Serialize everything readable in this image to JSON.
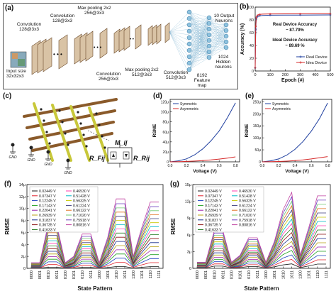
{
  "panel_labels": {
    "a": "(a)",
    "b": "(b)",
    "c": "(c)",
    "d": "(d)",
    "e": "(e)",
    "f": "(f)",
    "g": "(g)"
  },
  "panel_a": {
    "input_label": "Input size 32x32x3",
    "conv1": "Convolution 128@3x3",
    "conv2": "Convolution 128@3x3",
    "pool1": "Max pooling 2x2 256@3x3",
    "conv3": "Convolution 256@3x3",
    "pool2": "Max pooling 2x2 512@3x3",
    "conv4": "Convolution 512@3x3",
    "feature": "8192 Feature map",
    "hidden": "1024 Hidden neurons",
    "output": "10 Output Neurons"
  },
  "panel_c": {
    "mij": "M_ij",
    "r_left": "R_Fij",
    "r_right": "R_Rij",
    "gnd": "GND"
  },
  "chart_data": [
    {
      "id": "b",
      "type": "line",
      "xlabel": "Epoch (#)",
      "ylabel": "Accuracy (%)",
      "xlim": [
        0,
        500
      ],
      "ylim": [
        0,
        100
      ],
      "xticks": [
        0,
        100,
        200,
        300,
        400,
        500
      ],
      "yticks": [
        0,
        20,
        40,
        60,
        80,
        100
      ],
      "annotation_real_title": "Real Device Accuracy",
      "annotation_real_value": "~ 87.79%",
      "annotation_ideal_title": "Ideal Device Accuracy",
      "annotation_ideal_value": "~ 89.69 %",
      "legend": "bottom-right",
      "series": [
        {
          "name": "Real Device",
          "color": "#1f3f9f",
          "x": [
            0,
            2,
            4,
            6,
            8,
            10,
            15,
            20,
            30,
            50,
            100,
            200,
            300,
            400,
            500
          ],
          "y": [
            5,
            40,
            65,
            78,
            82,
            84,
            85,
            86,
            86.5,
            87,
            87.3,
            87.5,
            87.6,
            87.7,
            87.79
          ]
        },
        {
          "name": "Idea Device",
          "color": "#d62828",
          "x": [
            0,
            2,
            4,
            6,
            8,
            10,
            15,
            20,
            30,
            50,
            100,
            200,
            300,
            400,
            500
          ],
          "y": [
            5,
            45,
            70,
            80,
            84,
            86,
            87,
            88,
            88.5,
            89,
            89.3,
            89.5,
            89.6,
            89.65,
            89.69
          ]
        }
      ]
    },
    {
      "id": "d",
      "type": "line",
      "xlabel": "Voltage (V)",
      "ylabel": "RSME",
      "xlim": [
        0,
        0.85
      ],
      "ylim": [
        0,
        125
      ],
      "xticks": [
        0.0,
        0.2,
        0.4,
        0.6,
        0.8
      ],
      "xtick_labels": [
        "0.0",
        "0.2",
        "0.4",
        "0.6",
        "0.8"
      ],
      "yticks": [
        0,
        20,
        40,
        60,
        80,
        100,
        120
      ],
      "ytick_labels": [
        "0",
        "20μ",
        "40μ",
        "60μ",
        "80μ",
        "100μ",
        "120μ"
      ],
      "legend": "top-left",
      "series": [
        {
          "name": "Symmetric",
          "color": "#1f3f9f",
          "x": [
            0.0,
            0.1,
            0.2,
            0.3,
            0.4,
            0.5,
            0.6,
            0.7,
            0.8
          ],
          "y": [
            0,
            2,
            6,
            14,
            26,
            42,
            62,
            88,
            118
          ]
        },
        {
          "name": "Asymmetric",
          "color": "#d62828",
          "x": [
            0.0,
            0.1,
            0.2,
            0.3,
            0.4,
            0.5,
            0.6,
            0.7,
            0.8
          ],
          "y": [
            0,
            0.3,
            0.8,
            1.5,
            2.5,
            3.8,
            5.5,
            7.5,
            10
          ]
        }
      ]
    },
    {
      "id": "e",
      "type": "line",
      "xlabel": "Voltage (V)",
      "ylabel": "RSME",
      "xlim": [
        0,
        0.85
      ],
      "ylim": [
        0,
        260
      ],
      "xticks": [
        0.0,
        0.2,
        0.4,
        0.6,
        0.8
      ],
      "xtick_labels": [
        "0.0",
        "0.2",
        "0.4",
        "0.6",
        "0.8"
      ],
      "yticks": [
        0,
        50,
        100,
        150,
        200,
        250
      ],
      "ytick_labels": [
        "0",
        "50μ",
        "100μ",
        "150μ",
        "200μ",
        "250μ"
      ],
      "legend": "top-left",
      "series": [
        {
          "name": "Symmetric",
          "color": "#1f3f9f",
          "x": [
            0.0,
            0.1,
            0.2,
            0.3,
            0.4,
            0.5,
            0.6,
            0.7,
            0.8
          ],
          "y": [
            0,
            4,
            12,
            28,
            52,
            85,
            128,
            180,
            245
          ]
        },
        {
          "name": "Asymmetric",
          "color": "#d62828",
          "x": [
            0.0,
            0.1,
            0.2,
            0.3,
            0.4,
            0.5,
            0.6,
            0.7,
            0.8
          ],
          "y": [
            0,
            0.5,
            1.5,
            3,
            5,
            8,
            12,
            17,
            22
          ]
        }
      ]
    },
    {
      "id": "f",
      "type": "line",
      "xlabel": "State Pattern",
      "ylabel": "RMSE",
      "categories": [
        "0000",
        "0001",
        "0010",
        "0011",
        "0100",
        "0101",
        "0110",
        "0111",
        "1000",
        "1001",
        "1010",
        "1011",
        "1100",
        "1101",
        "1110",
        "1111"
      ],
      "ylim": [
        0,
        14
      ],
      "yticks": [
        0,
        2,
        4,
        6,
        8,
        10,
        12,
        14
      ],
      "ytick_labels": [
        "0",
        "2μ",
        "4μ",
        "6μ",
        "8μ",
        "10μ",
        "12μ",
        "14μ"
      ],
      "legend": "top-left",
      "pattern": [
        0,
        0,
        0.6,
        0.6,
        0,
        0.1,
        0.45,
        0.45,
        0,
        0.4,
        1,
        1,
        0.1,
        0.55,
        0.95,
        0.95
      ],
      "series": [
        {
          "name": "0.02449 V",
          "color": "#1a1a1a",
          "peak": 0.3
        },
        {
          "name": "0.07347 V",
          "color": "#e0202a",
          "peak": 1.0
        },
        {
          "name": "0.12245 V",
          "color": "#1f3fbf",
          "peak": 1.7
        },
        {
          "name": "0.17143 V",
          "color": "#20a020",
          "peak": 2.4
        },
        {
          "name": "0.22041 V",
          "color": "#9a1fa8",
          "peak": 3.1
        },
        {
          "name": "0.26939 V",
          "color": "#b8a010",
          "peak": 3.8
        },
        {
          "name": "0.31837 V",
          "color": "#102a8a",
          "peak": 4.5
        },
        {
          "name": "0.36735 V",
          "color": "#8a1010",
          "peak": 5.2
        },
        {
          "name": "0.41633 V",
          "color": "#1e7a1e",
          "peak": 5.9
        },
        {
          "name": "0.46530 V",
          "color": "#ff3eb0",
          "peak": 6.6
        },
        {
          "name": "0.51428 V",
          "color": "#00b8c8",
          "peak": 7.3
        },
        {
          "name": "0.56325 V",
          "color": "#c8c800",
          "peak": 8.0
        },
        {
          "name": "0.61224 V",
          "color": "#3f3f7f",
          "peak": 8.7
        },
        {
          "name": "0.66122 V",
          "color": "#e07020",
          "peak": 9.4
        },
        {
          "name": "0.71020 V",
          "color": "#70c870",
          "peak": 10.1
        },
        {
          "name": "0.75918 V",
          "color": "#7040c0",
          "peak": 10.8
        },
        {
          "name": "0.80816 V",
          "color": "#c040a0",
          "peak": 11.6
        }
      ]
    },
    {
      "id": "g",
      "type": "line",
      "xlabel": "State Pattern",
      "ylabel": "RMSE",
      "categories": [
        "0000",
        "0001",
        "0010",
        "0011",
        "0100",
        "0101",
        "0110",
        "0111",
        "1000",
        "1001",
        "1010",
        "1011",
        "1100",
        "1101",
        "1110",
        "1111"
      ],
      "ylim": [
        0,
        15
      ],
      "yticks": [
        0,
        3,
        6,
        9,
        12,
        15
      ],
      "ytick_labels": [
        "0",
        "3μ",
        "6μ",
        "9μ",
        "12μ",
        "15μ"
      ],
      "legend": "top-left",
      "pattern": [
        0,
        0,
        0.45,
        0.45,
        0,
        0.1,
        0.35,
        0.35,
        0,
        0.3,
        0.75,
        1,
        0.1,
        0.5,
        0.95,
        0.95
      ],
      "series": [
        {
          "name": "0.02449 V",
          "color": "#1a1a1a",
          "peak": 0.8
        },
        {
          "name": "0.07347 V",
          "color": "#e0202a",
          "peak": 1.6
        },
        {
          "name": "0.12245 V",
          "color": "#1f3fbf",
          "peak": 2.4
        },
        {
          "name": "0.17143 V",
          "color": "#20a020",
          "peak": 3.2
        },
        {
          "name": "0.22041 V",
          "color": "#9a1fa8",
          "peak": 4.0
        },
        {
          "name": "0.26939 V",
          "color": "#b8a010",
          "peak": 4.8
        },
        {
          "name": "0.31837 V",
          "color": "#102a8a",
          "peak": 5.6
        },
        {
          "name": "0.36735 V",
          "color": "#8a1010",
          "peak": 6.4
        },
        {
          "name": "0.41633 V",
          "color": "#1e7a1e",
          "peak": 7.2
        },
        {
          "name": "0.46530 V",
          "color": "#ff3eb0",
          "peak": 8.0
        },
        {
          "name": "0.51428 V",
          "color": "#00b8c8",
          "peak": 8.8
        },
        {
          "name": "0.56325 V",
          "color": "#c8c800",
          "peak": 9.6
        },
        {
          "name": "0.61224 V",
          "color": "#3f3f7f",
          "peak": 10.4
        },
        {
          "name": "0.66122 V",
          "color": "#e07020",
          "peak": 11.2
        },
        {
          "name": "0.71020 V",
          "color": "#70c870",
          "peak": 12.0
        },
        {
          "name": "0.75918 V",
          "color": "#7040c0",
          "peak": 12.8
        },
        {
          "name": "0.80816 V",
          "color": "#c040a0",
          "peak": 13.6
        }
      ]
    }
  ]
}
